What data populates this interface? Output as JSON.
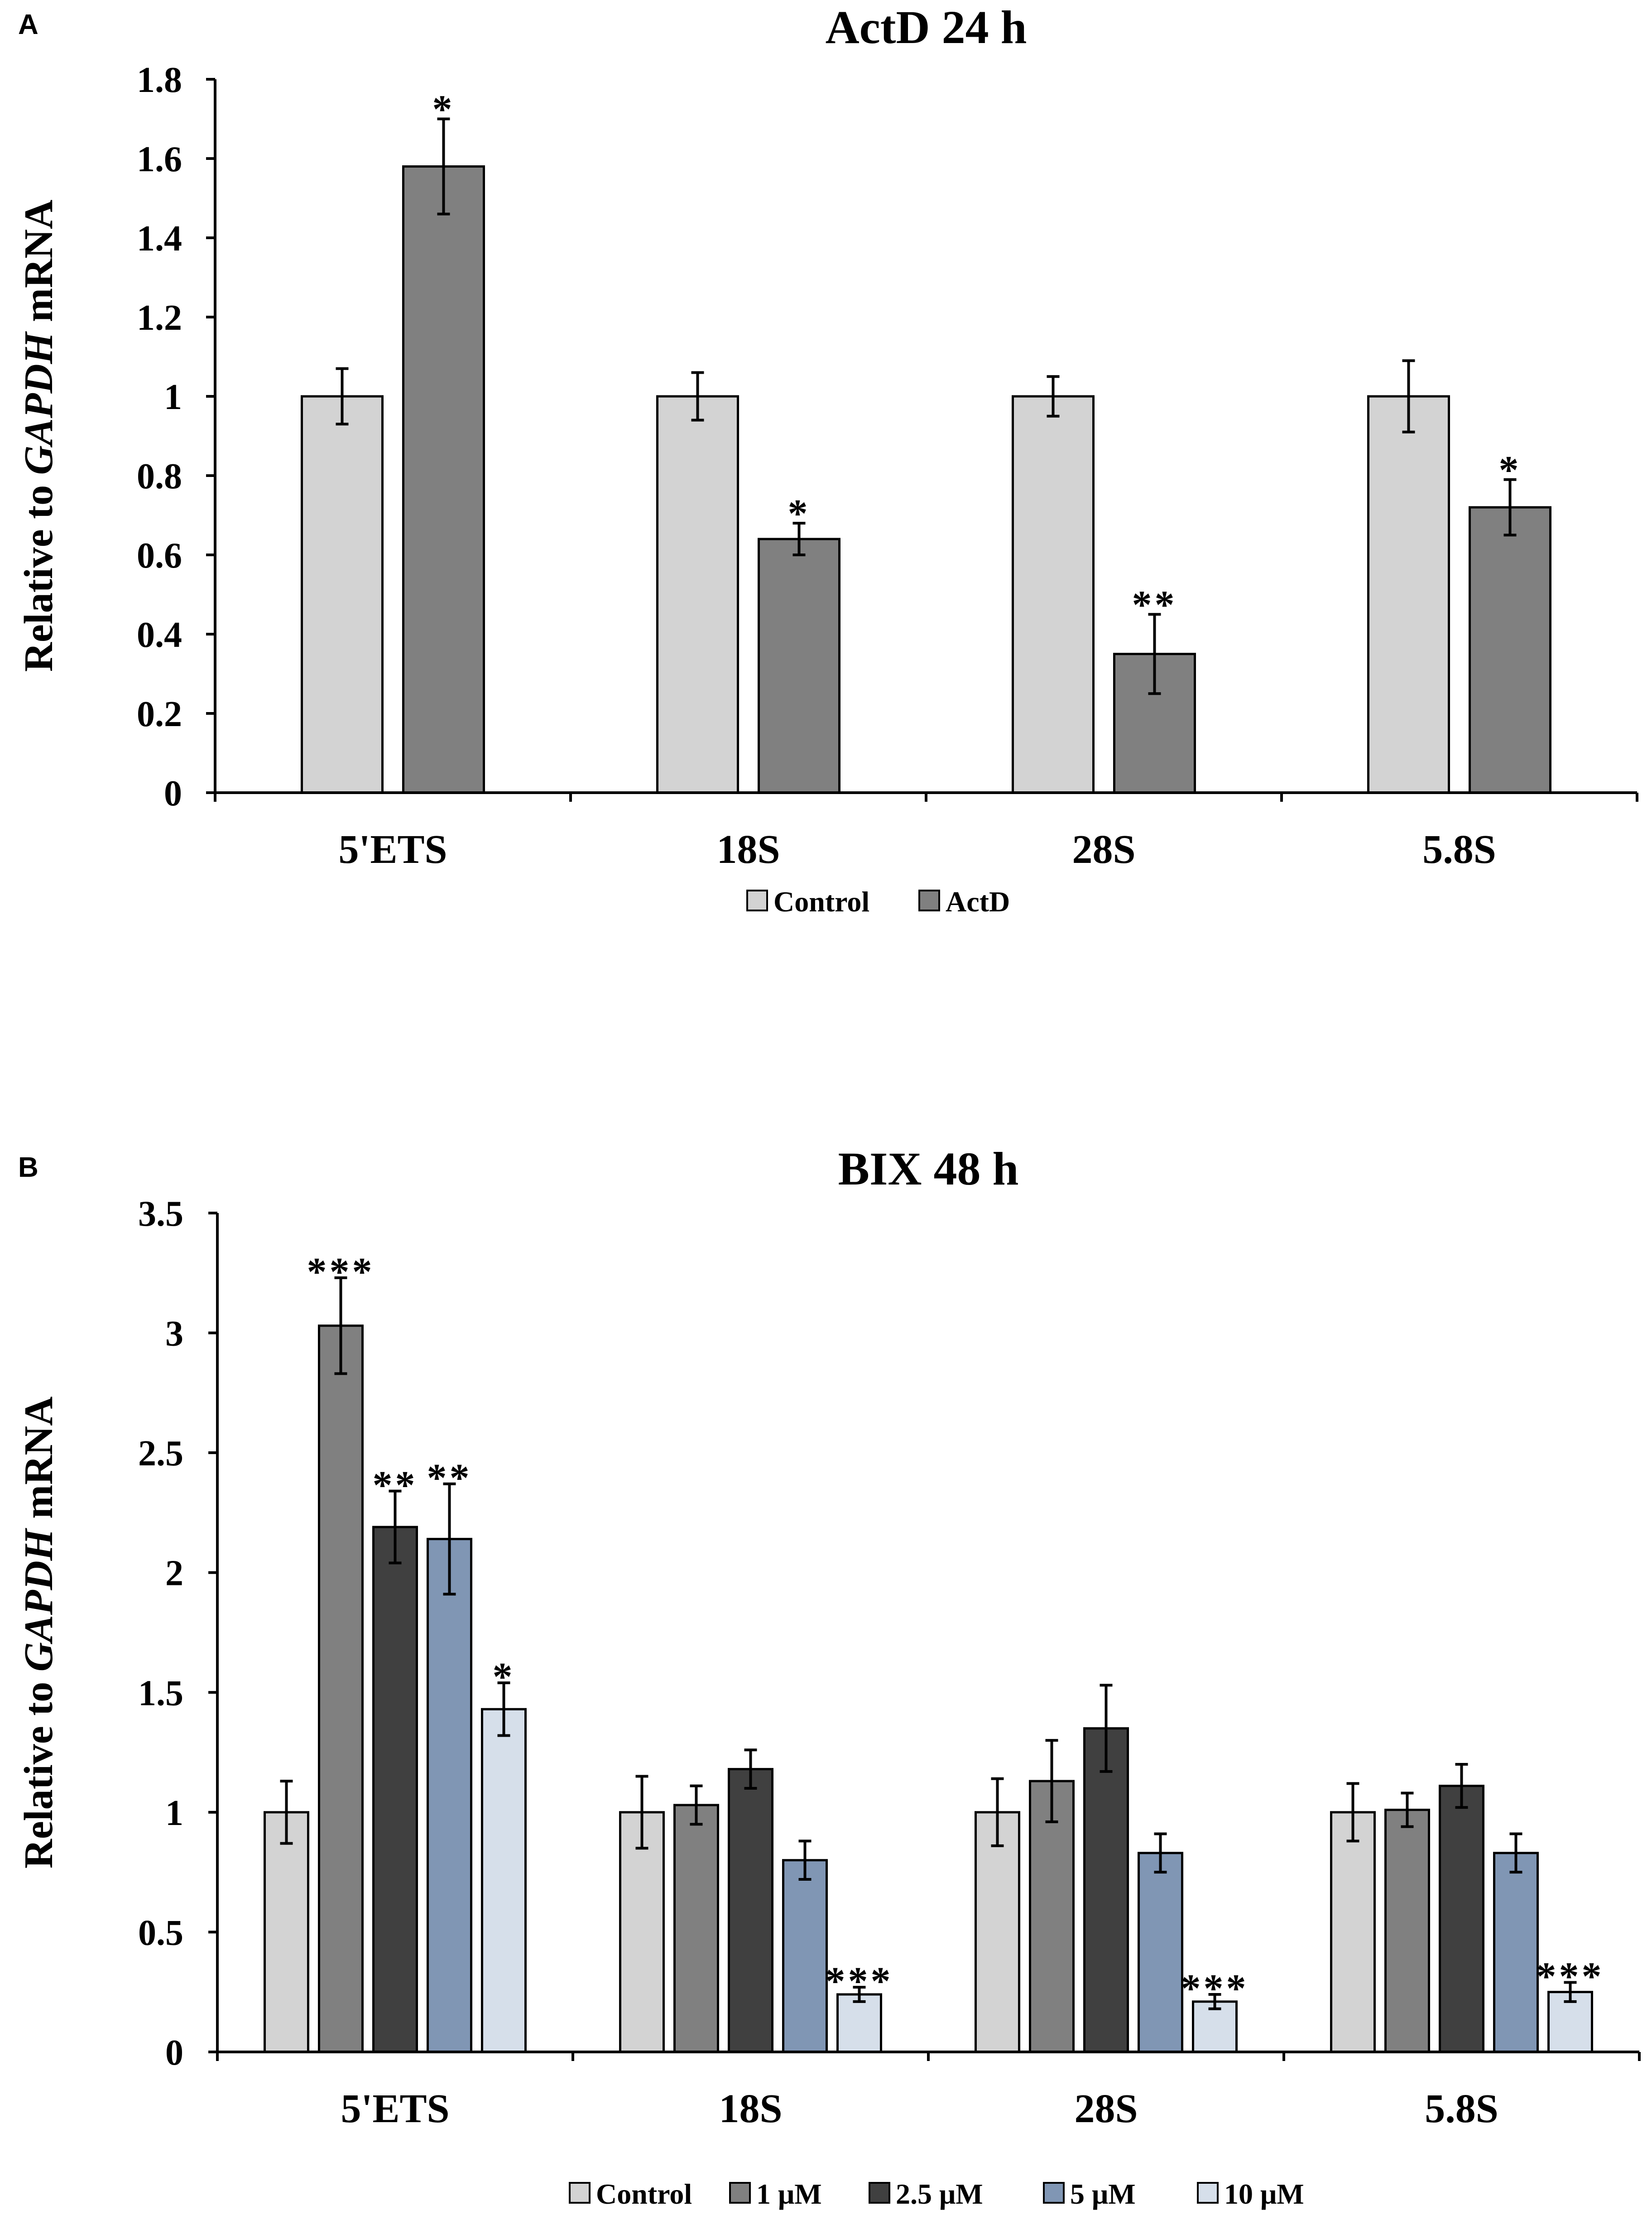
{
  "chart_data": [
    {
      "panel_label": "A",
      "type": "bar",
      "title": "ActD  24 h",
      "ylabel_prefix": "Relative to ",
      "ylabel_italic": "GAPDH",
      "ylabel_suffix": " mRNA",
      "xlabel": "",
      "ylim": [
        0,
        1.8
      ],
      "yticks": [
        0,
        0.2,
        0.4,
        0.6,
        0.8,
        1,
        1.2,
        1.4,
        1.6,
        1.8
      ],
      "ytick_labels": [
        "0",
        "0.2",
        "0.4",
        "0.6",
        "0.8",
        "1",
        "1.2",
        "1.4",
        "1.6",
        "1.8"
      ],
      "categories": [
        "5'ETS",
        "18S",
        "28S",
        "5.8S"
      ],
      "legend_position": "bottom",
      "series": [
        {
          "name": "Control",
          "color": "#d3d3d3",
          "values": [
            1.0,
            1.0,
            1.0,
            1.0
          ],
          "errors": [
            0.07,
            0.06,
            0.05,
            0.09
          ],
          "significance": [
            "",
            "",
            "",
            ""
          ]
        },
        {
          "name": "ActD",
          "color": "#808080",
          "values": [
            1.58,
            0.64,
            0.35,
            0.72
          ],
          "errors": [
            0.12,
            0.04,
            0.1,
            0.07
          ],
          "significance": [
            "*",
            "*",
            "**",
            "*"
          ]
        }
      ]
    },
    {
      "panel_label": "B",
      "type": "bar",
      "title": "BIX  48 h",
      "ylabel_prefix": "Relative to ",
      "ylabel_italic": "GAPDH",
      "ylabel_suffix": " mRNA",
      "xlabel": "",
      "ylim": [
        0,
        3.5
      ],
      "yticks": [
        0,
        0.5,
        1,
        1.5,
        2,
        2.5,
        3,
        3.5
      ],
      "ytick_labels": [
        "0",
        "0.5",
        "1",
        "1.5",
        "2",
        "2.5",
        "3",
        "3.5"
      ],
      "categories": [
        "5'ETS",
        "18S",
        "28S",
        "5.8S"
      ],
      "legend_position": "bottom",
      "series": [
        {
          "name": "Control",
          "color": "#d3d3d3",
          "values": [
            1.0,
            1.0,
            1.0,
            1.0
          ],
          "errors": [
            0.13,
            0.15,
            0.14,
            0.12
          ],
          "significance": [
            "",
            "",
            "",
            ""
          ]
        },
        {
          "name": "1 μM",
          "color": "#808080",
          "values": [
            3.03,
            1.03,
            1.13,
            1.01
          ],
          "errors": [
            0.2,
            0.08,
            0.17,
            0.07
          ],
          "significance": [
            "***",
            "",
            "",
            ""
          ]
        },
        {
          "name": "2.5 μM",
          "color": "#404040",
          "values": [
            2.19,
            1.18,
            1.35,
            1.11
          ],
          "errors": [
            0.15,
            0.08,
            0.18,
            0.09
          ],
          "significance": [
            "**",
            "",
            "",
            ""
          ]
        },
        {
          "name": "5 μM",
          "color": "#8096b4",
          "values": [
            2.14,
            0.8,
            0.83,
            0.83
          ],
          "errors": [
            0.23,
            0.08,
            0.08,
            0.08
          ],
          "significance": [
            "**",
            "",
            "",
            ""
          ]
        },
        {
          "name": "10 μM",
          "color": "#d6dfea",
          "values": [
            1.43,
            0.24,
            0.21,
            0.25
          ],
          "errors": [
            0.11,
            0.03,
            0.03,
            0.04
          ],
          "significance": [
            "*",
            "***",
            "***",
            "***"
          ]
        }
      ]
    }
  ]
}
